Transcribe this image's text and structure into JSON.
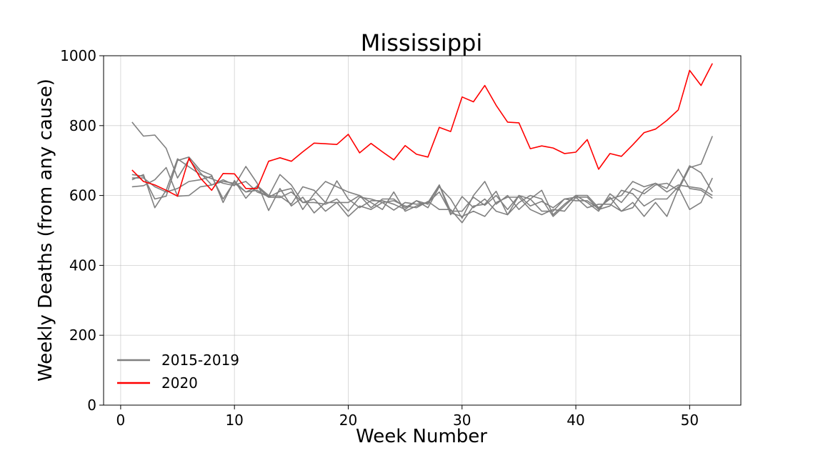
{
  "chart_data": {
    "type": "line",
    "title": "Mississippi",
    "xlabel": "Week Number",
    "ylabel": "Weekly Deaths (from any cause)",
    "xlim": [
      -1.5,
      54.5
    ],
    "ylim": [
      0,
      1000
    ],
    "xticks": [
      0,
      10,
      20,
      30,
      40,
      50
    ],
    "yticks": [
      0,
      200,
      400,
      600,
      800,
      1000
    ],
    "grid": true,
    "legend_position": "lower-left",
    "legend": [
      {
        "label": "2015-2019",
        "color": "#808080"
      },
      {
        "label": "2020",
        "color": "#ff0000"
      }
    ],
    "x": [
      1,
      2,
      3,
      4,
      5,
      6,
      7,
      8,
      9,
      10,
      11,
      12,
      13,
      14,
      15,
      16,
      17,
      18,
      19,
      20,
      21,
      22,
      23,
      24,
      25,
      26,
      27,
      28,
      29,
      30,
      31,
      32,
      33,
      34,
      35,
      36,
      37,
      38,
      39,
      40,
      41,
      42,
      43,
      44,
      45,
      46,
      47,
      48,
      49,
      50,
      51,
      52
    ],
    "series": [
      {
        "group": "2015-2019",
        "color": "#808080",
        "values": [
          810,
          770,
          773,
          735,
          650,
          703,
          665,
          630,
          645,
          630,
          640,
          610,
          598,
          660,
          630,
          580,
          590,
          555,
          580,
          580,
          600,
          565,
          590,
          590,
          565,
          585,
          565,
          625,
          590,
          535,
          600,
          640,
          575,
          600,
          560,
          590,
          615,
          545,
          575,
          600,
          600,
          565,
          590,
          600,
          640,
          625,
          635,
          620,
          675,
          620,
          615,
          592
        ]
      },
      {
        "group": "2015-2019",
        "color": "#808080",
        "values": [
          625,
          628,
          645,
          680,
          598,
          600,
          625,
          630,
          640,
          635,
          610,
          625,
          595,
          612,
          620,
          560,
          605,
          640,
          625,
          610,
          600,
          580,
          560,
          610,
          555,
          570,
          580,
          630,
          545,
          597,
          565,
          590,
          555,
          545,
          580,
          600,
          590,
          540,
          570,
          600,
          580,
          555,
          605,
          580,
          620,
          605,
          630,
          635,
          615,
          680,
          690,
          770
        ]
      },
      {
        "group": "2015-2019",
        "color": "#808080",
        "values": [
          645,
          660,
          565,
          615,
          705,
          682,
          660,
          648,
          635,
          628,
          683,
          635,
          557,
          620,
          570,
          595,
          550,
          580,
          580,
          540,
          570,
          560,
          580,
          585,
          570,
          565,
          583,
          560,
          560,
          522,
          570,
          575,
          612,
          545,
          600,
          570,
          583,
          565,
          590,
          595,
          595,
          560,
          570,
          615,
          605,
          570,
          590,
          590,
          625,
          560,
          580,
          650
        ]
      },
      {
        "group": "2015-2019",
        "color": "#808080",
        "values": [
          660,
          655,
          590,
          598,
          700,
          710,
          672,
          658,
          580,
          643,
          592,
          628,
          600,
          598,
          575,
          625,
          615,
          580,
          642,
          590,
          565,
          585,
          585,
          575,
          560,
          585,
          575,
          630,
          555,
          555,
          595,
          572,
          600,
          560,
          600,
          590,
          555,
          555,
          590,
          585,
          585,
          562,
          595,
          555,
          580,
          540,
          580,
          540,
          620,
          685,
          665,
          610
        ]
      },
      {
        "group": "2015-2019",
        "color": "#808080",
        "values": [
          650,
          650,
          625,
          610,
          620,
          640,
          645,
          655,
          590,
          640,
          610,
          615,
          595,
          594,
          610,
          580,
          580,
          575,
          590,
          555,
          595,
          590,
          580,
          558,
          580,
          575,
          580,
          610,
          550,
          540,
          555,
          540,
          580,
          595,
          595,
          560,
          545,
          560,
          555,
          595,
          565,
          575,
          575,
          555,
          565,
          615,
          635,
          610,
          630,
          625,
          620,
          600
        ]
      },
      {
        "group": "2020",
        "color": "#ff0000",
        "values": [
          673,
          640,
          630,
          615,
          598,
          707,
          650,
          615,
          663,
          662,
          620,
          620,
          698,
          708,
          698,
          725,
          750,
          748,
          746,
          775,
          722,
          749,
          725,
          702,
          743,
          718,
          710,
          795,
          783,
          882,
          868,
          915,
          858,
          810,
          808,
          734,
          742,
          736,
          720,
          724,
          760,
          675,
          720,
          712,
          745,
          780,
          790,
          815,
          845,
          958,
          915,
          978
        ]
      }
    ]
  }
}
